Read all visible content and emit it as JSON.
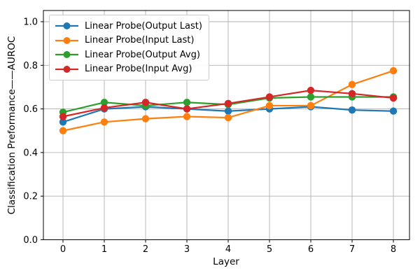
{
  "figure": {
    "background": "#ffffff",
    "grid_color": "#b0b0b0",
    "spine_color": "#000000",
    "text_color": "#000000"
  },
  "chart_data": {
    "type": "line",
    "title": "",
    "xlabel": "Layer",
    "ylabel": "Classification Preformance——AUROC",
    "x": [
      0,
      1,
      2,
      3,
      4,
      5,
      6,
      7,
      8
    ],
    "xtick_labels": [
      "0",
      "1",
      "2",
      "3",
      "4",
      "5",
      "6",
      "7",
      "8"
    ],
    "ytick_values": [
      0.0,
      0.2,
      0.4,
      0.6,
      0.8,
      1.0
    ],
    "ytick_labels": [
      "0.0",
      "0.2",
      "0.4",
      "0.6",
      "0.8",
      "1.0"
    ],
    "xlim": [
      -0.47,
      8.4
    ],
    "ylim": [
      0,
      1.05
    ],
    "grid": true,
    "legend_position": "upper left",
    "marker": "circle",
    "series": [
      {
        "name": "Linear Probe(Output Last)",
        "color": "#1f77b4",
        "values": [
          0.54,
          0.6,
          0.61,
          0.6,
          0.59,
          0.6,
          0.61,
          0.595,
          0.59
        ]
      },
      {
        "name": "Linear Probe(Input Last)",
        "color": "#ff7f0e",
        "values": [
          0.5,
          0.54,
          0.555,
          0.565,
          0.56,
          0.615,
          0.615,
          0.712,
          0.775
        ]
      },
      {
        "name": "Linear Probe(Output Avg)",
        "color": "#2ca02c",
        "values": [
          0.585,
          0.63,
          0.615,
          0.63,
          0.62,
          0.65,
          0.655,
          0.655,
          0.655
        ]
      },
      {
        "name": "Linear Probe(Input Avg)",
        "color": "#d62728",
        "values": [
          0.565,
          0.605,
          0.63,
          0.6,
          0.625,
          0.655,
          0.685,
          0.67,
          0.65
        ]
      }
    ]
  }
}
